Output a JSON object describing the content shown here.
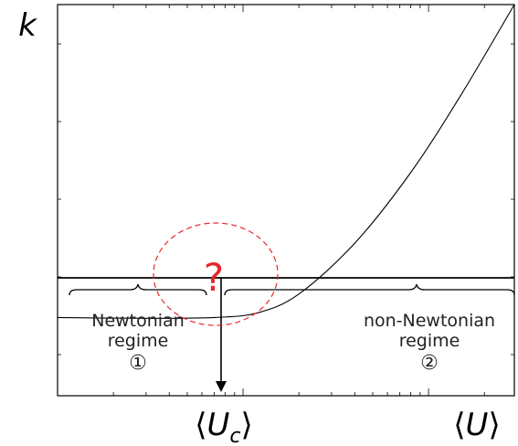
{
  "chart_data": {
    "type": "line",
    "ylabel": "k",
    "x_axis_label_left": "⟨U_c⟩",
    "x_axis_label_right": "⟨U⟩",
    "x_scale": "log",
    "grid": false,
    "series": [
      {
        "points": [
          {
            "x": 1.0,
            "y": 1.0
          },
          {
            "x": 3.0,
            "y": 0.99
          },
          {
            "x": 7.0,
            "y": 1.0
          },
          {
            "x": 12.0,
            "y": 1.06
          },
          {
            "x": 20.0,
            "y": 1.3
          },
          {
            "x": 40.0,
            "y": 1.95
          },
          {
            "x": 80.0,
            "y": 2.85
          },
          {
            "x": 150.0,
            "y": 3.85
          },
          {
            "x": 290.0,
            "y": 5.0
          }
        ]
      }
    ],
    "critical_marker": "?",
    "regimes": [
      {
        "name_line1": "Newtonian",
        "name_line2": "regime",
        "number": "①"
      },
      {
        "name_line1": "non-Newtonian",
        "name_line2": "regime",
        "number": "②"
      }
    ]
  },
  "colors": {
    "axis": "#000000",
    "curve": "#000000",
    "critical": "#e8262a",
    "text": "#222222"
  }
}
